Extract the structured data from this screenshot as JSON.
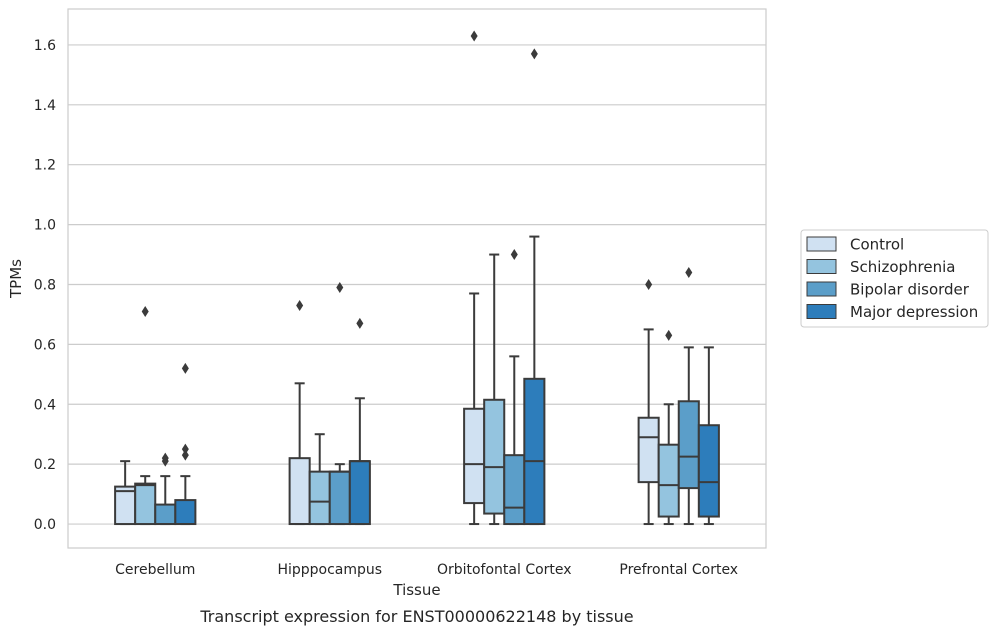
{
  "chart_data": {
    "type": "boxplot",
    "title": "",
    "caption": "Transcript expression for ENST00000622148 by tissue",
    "xlabel": "Tissue",
    "ylabel": "TPMs",
    "ylim": [
      -0.08,
      1.72
    ],
    "yticks": [
      0.0,
      0.2,
      0.4,
      0.6,
      0.8,
      1.0,
      1.2,
      1.4,
      1.6
    ],
    "ytick_labels": [
      "0.0",
      "0.2",
      "0.4",
      "0.6",
      "0.8",
      "1.0",
      "1.2",
      "1.4",
      "1.6"
    ],
    "grid": "horizontal",
    "legend_placement": "right",
    "categories": [
      "Cerebellum",
      "Hipppocampus",
      "Orbitofontal Cortex",
      "Prefrontal Cortex"
    ],
    "series": [
      {
        "name": "Control",
        "color": "#d0e1f2",
        "boxes": [
          {
            "whislo": 0.0,
            "q1": 0.0,
            "med": 0.11,
            "q3": 0.125,
            "whishi": 0.21,
            "fliers": []
          },
          {
            "whislo": 0.0,
            "q1": 0.0,
            "med": 0.0,
            "q3": 0.22,
            "whishi": 0.47,
            "fliers": [
              0.73
            ]
          },
          {
            "whislo": 0.0,
            "q1": 0.07,
            "med": 0.2,
            "q3": 0.385,
            "whishi": 0.77,
            "fliers": [
              1.63
            ]
          },
          {
            "whislo": 0.0,
            "q1": 0.14,
            "med": 0.29,
            "q3": 0.355,
            "whishi": 0.65,
            "fliers": [
              0.8
            ]
          }
        ]
      },
      {
        "name": "Schizophrenia",
        "color": "#94c4df",
        "boxes": [
          {
            "whislo": 0.0,
            "q1": 0.0,
            "med": 0.13,
            "q3": 0.135,
            "whishi": 0.16,
            "fliers": [
              0.71
            ]
          },
          {
            "whislo": 0.0,
            "q1": 0.0,
            "med": 0.075,
            "q3": 0.175,
            "whishi": 0.3,
            "fliers": []
          },
          {
            "whislo": 0.0,
            "q1": 0.035,
            "med": 0.19,
            "q3": 0.415,
            "whishi": 0.9,
            "fliers": []
          },
          {
            "whislo": 0.0,
            "q1": 0.025,
            "med": 0.13,
            "q3": 0.265,
            "whishi": 0.4,
            "fliers": [
              0.63
            ]
          }
        ]
      },
      {
        "name": "Bipolar disorder",
        "color": "#5b9ec9",
        "boxes": [
          {
            "whislo": 0.0,
            "q1": 0.0,
            "med": 0.0,
            "q3": 0.065,
            "whishi": 0.16,
            "fliers": [
              0.21,
              0.22
            ]
          },
          {
            "whislo": 0.0,
            "q1": 0.0,
            "med": 0.175,
            "q3": 0.175,
            "whishi": 0.2,
            "fliers": [
              0.79
            ]
          },
          {
            "whislo": 0.0,
            "q1": 0.0,
            "med": 0.055,
            "q3": 0.23,
            "whishi": 0.56,
            "fliers": [
              0.9
            ]
          },
          {
            "whislo": 0.0,
            "q1": 0.12,
            "med": 0.225,
            "q3": 0.41,
            "whishi": 0.59,
            "fliers": [
              0.84
            ]
          }
        ]
      },
      {
        "name": "Major depression",
        "color": "#2d7dbb",
        "boxes": [
          {
            "whislo": 0.0,
            "q1": 0.0,
            "med": 0.0,
            "q3": 0.08,
            "whishi": 0.16,
            "fliers": [
              0.23,
              0.25,
              0.52
            ]
          },
          {
            "whislo": 0.0,
            "q1": 0.0,
            "med": 0.21,
            "q3": 0.21,
            "whishi": 0.42,
            "fliers": [
              0.67
            ]
          },
          {
            "whislo": 0.0,
            "q1": 0.0,
            "med": 0.21,
            "q3": 0.485,
            "whishi": 0.96,
            "fliers": [
              1.57
            ]
          },
          {
            "whislo": 0.0,
            "q1": 0.025,
            "med": 0.14,
            "q3": 0.33,
            "whishi": 0.59,
            "fliers": []
          }
        ]
      }
    ]
  }
}
